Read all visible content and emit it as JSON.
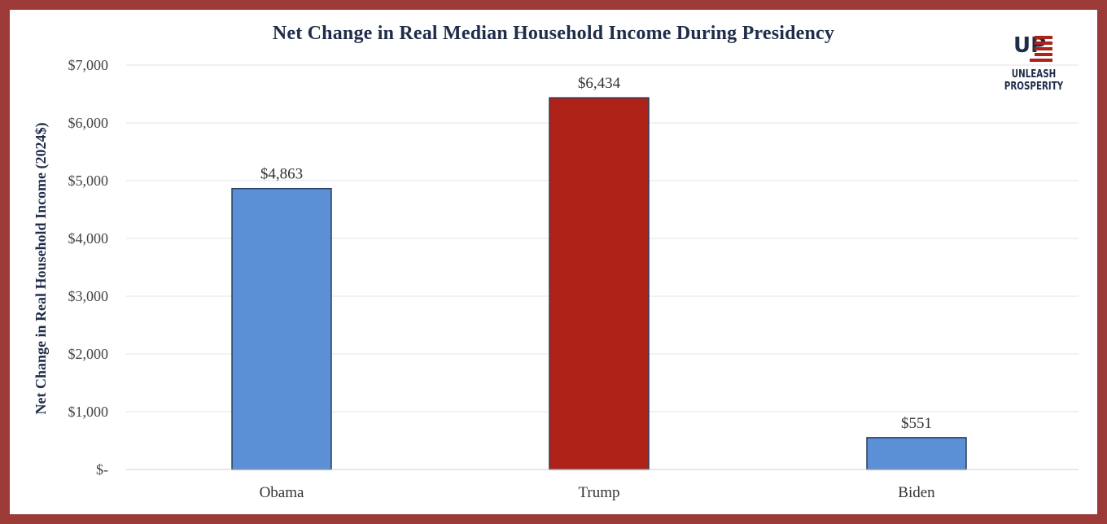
{
  "chart_data": {
    "type": "bar",
    "title": "Net Change in Real Median Household Income During Presidency",
    "ylabel": "Net Change in Real Household Income (2024$)",
    "xlabel": "",
    "categories": [
      "Obama",
      "Trump",
      "Biden"
    ],
    "values": [
      4863,
      6434,
      551
    ],
    "data_labels": [
      "$4,863",
      "$6,434",
      "$551"
    ],
    "bar_colors": [
      "#5b8fd6",
      "#ae2218",
      "#5b8fd6"
    ],
    "ylim": [
      0,
      7000
    ],
    "yticks": [
      0,
      1000,
      2000,
      3000,
      4000,
      5000,
      6000,
      7000
    ],
    "ytick_labels": [
      "$-",
      "$1,000",
      "$2,000",
      "$3,000",
      "$4,000",
      "$5,000",
      "$6,000",
      "$7,000"
    ],
    "grid": true,
    "legend": "none"
  },
  "logo": {
    "mark": "UP",
    "text": "UNLEASH PROSPERITY"
  },
  "colors": {
    "frame": "#9b3a36",
    "title": "#1f2d4a",
    "grid": "#e3e3e3",
    "bar_outline": "#2a3d5c"
  }
}
